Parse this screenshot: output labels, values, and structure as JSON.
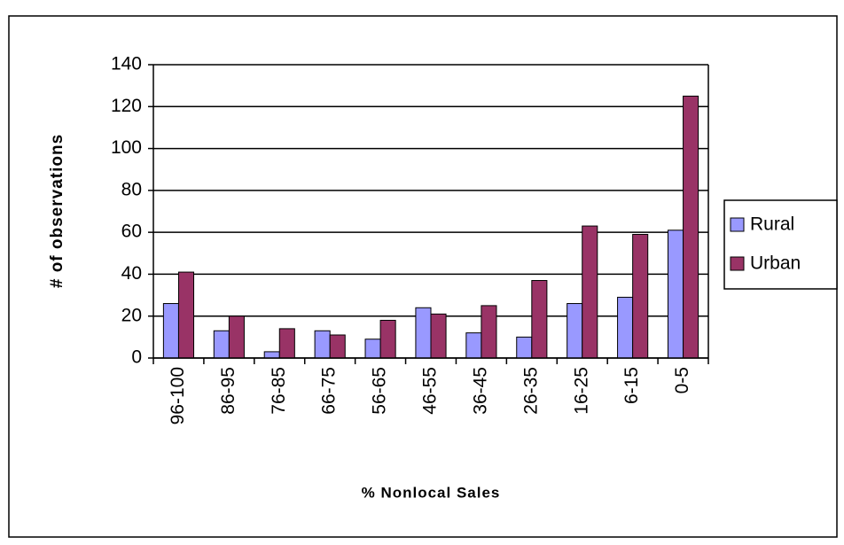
{
  "chart_data": {
    "type": "bar",
    "x_label": "% Nonlocal Sales",
    "y_label": "# of observations",
    "categories": [
      "96-100",
      "86-95",
      "76-85",
      "66-75",
      "56-65",
      "46-55",
      "36-45",
      "26-35",
      "16-25",
      "6-15",
      "0-5"
    ],
    "series": [
      {
        "name": "Rural",
        "color": "#9999ff",
        "values": [
          26,
          13,
          3,
          13,
          9,
          24,
          12,
          10,
          26,
          29,
          61
        ]
      },
      {
        "name": "Urban",
        "color": "#993366",
        "values": [
          41,
          20,
          14,
          11,
          18,
          21,
          25,
          37,
          63,
          59,
          125
        ]
      }
    ],
    "ylim": [
      0,
      140
    ],
    "yticks": [
      0,
      20,
      40,
      60,
      80,
      100,
      120,
      140
    ],
    "grid": true,
    "legend": "right"
  }
}
